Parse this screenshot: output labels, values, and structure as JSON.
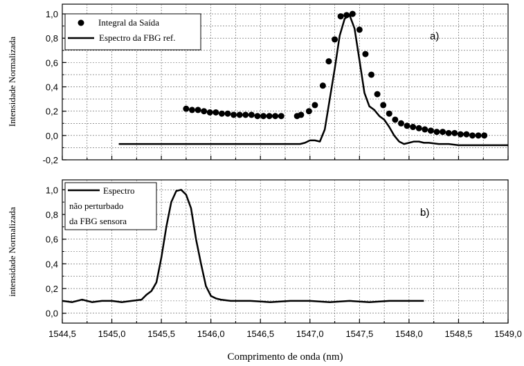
{
  "chart_data": [
    {
      "type": "scatter",
      "panel_label": "a)",
      "ylabel": "Intensidade Normalizada",
      "xlim": [
        1544.5,
        1549.0
      ],
      "ylim": [
        -0.2,
        1.08
      ],
      "yticks": [
        "-0,2",
        "0,0",
        "0,2",
        "0,4",
        "0,6",
        "0,8",
        "1,0"
      ],
      "grid": true,
      "legend_position": "top-left",
      "series": [
        {
          "name": "Integral da Saída",
          "style": "markers",
          "x": [
            1545.75,
            1545.81,
            1545.87,
            1545.93,
            1545.99,
            1546.05,
            1546.11,
            1546.17,
            1546.23,
            1546.29,
            1546.35,
            1546.41,
            1546.47,
            1546.53,
            1546.59,
            1546.65,
            1546.71,
            1546.87,
            1546.91,
            1546.99,
            1547.05,
            1547.13,
            1547.19,
            1547.25,
            1547.31,
            1547.37,
            1547.43,
            1547.5,
            1547.56,
            1547.62,
            1547.68,
            1547.74,
            1547.8,
            1547.86,
            1547.92,
            1547.98,
            1548.04,
            1548.1,
            1548.16,
            1548.22,
            1548.28,
            1548.34,
            1548.4,
            1548.46,
            1548.52,
            1548.58,
            1548.64,
            1548.7,
            1548.76
          ],
          "y": [
            0.22,
            0.21,
            0.21,
            0.2,
            0.19,
            0.19,
            0.18,
            0.18,
            0.17,
            0.17,
            0.17,
            0.17,
            0.16,
            0.16,
            0.16,
            0.16,
            0.16,
            0.16,
            0.17,
            0.2,
            0.25,
            0.41,
            0.61,
            0.79,
            0.98,
            0.99,
            1.0,
            0.87,
            0.67,
            0.5,
            0.34,
            0.25,
            0.18,
            0.13,
            0.1,
            0.08,
            0.07,
            0.06,
            0.05,
            0.04,
            0.03,
            0.03,
            0.02,
            0.02,
            0.01,
            0.01,
            0.0,
            0.0,
            0.0
          ]
        },
        {
          "name": "Espectro da FBG ref.",
          "style": "line",
          "x": [
            1545.07,
            1545.5,
            1546.0,
            1546.5,
            1546.9,
            1546.95,
            1547.0,
            1547.05,
            1547.1,
            1547.15,
            1547.2,
            1547.25,
            1547.3,
            1547.35,
            1547.4,
            1547.45,
            1547.5,
            1547.55,
            1547.6,
            1547.65,
            1547.7,
            1547.75,
            1547.8,
            1547.85,
            1547.9,
            1547.95,
            1548.0,
            1548.05,
            1548.1,
            1548.15,
            1548.2,
            1548.3,
            1548.4,
            1548.5,
            1548.7,
            1549.0
          ],
          "y": [
            -0.07,
            -0.07,
            -0.07,
            -0.07,
            -0.07,
            -0.06,
            -0.04,
            -0.04,
            -0.05,
            0.05,
            0.3,
            0.55,
            0.82,
            0.96,
            0.99,
            0.88,
            0.62,
            0.35,
            0.24,
            0.21,
            0.16,
            0.13,
            0.07,
            0.0,
            -0.05,
            -0.07,
            -0.06,
            -0.05,
            -0.05,
            -0.06,
            -0.06,
            -0.07,
            -0.07,
            -0.08,
            -0.08,
            -0.08
          ]
        }
      ]
    },
    {
      "type": "line",
      "panel_label": "b)",
      "ylabel": "intensidade Normalizada",
      "xlabel": "Comprimento de onda (nm)",
      "xlim": [
        1544.5,
        1549.0
      ],
      "ylim": [
        -0.08,
        1.08
      ],
      "yticks": [
        "0,0",
        "0,2",
        "0,4",
        "0,6",
        "0,8",
        "1,0"
      ],
      "xticks": [
        "1544,5",
        "1545,0",
        "1545,5",
        "1546,0",
        "1546,5",
        "1547,0",
        "1547,5",
        "1548,0",
        "1548,5",
        "1549,0"
      ],
      "grid": true,
      "legend_position": "top-left",
      "series": [
        {
          "name": "Espectro\nnão perturbado\nda FBG sensora",
          "style": "line",
          "x": [
            1544.5,
            1544.6,
            1544.7,
            1544.8,
            1544.9,
            1545.0,
            1545.1,
            1545.2,
            1545.3,
            1545.35,
            1545.4,
            1545.45,
            1545.5,
            1545.55,
            1545.6,
            1545.65,
            1545.7,
            1545.75,
            1545.8,
            1545.85,
            1545.9,
            1545.95,
            1546.0,
            1546.05,
            1546.1,
            1546.2,
            1546.4,
            1546.6,
            1546.8,
            1547.0,
            1547.2,
            1547.4,
            1547.6,
            1547.8,
            1548.0,
            1548.15
          ],
          "y": [
            0.1,
            0.09,
            0.11,
            0.09,
            0.1,
            0.1,
            0.09,
            0.1,
            0.11,
            0.15,
            0.18,
            0.25,
            0.45,
            0.7,
            0.9,
            0.99,
            1.0,
            0.96,
            0.85,
            0.6,
            0.4,
            0.22,
            0.14,
            0.12,
            0.11,
            0.1,
            0.1,
            0.09,
            0.1,
            0.1,
            0.09,
            0.1,
            0.09,
            0.1,
            0.1,
            0.1
          ]
        }
      ]
    }
  ]
}
